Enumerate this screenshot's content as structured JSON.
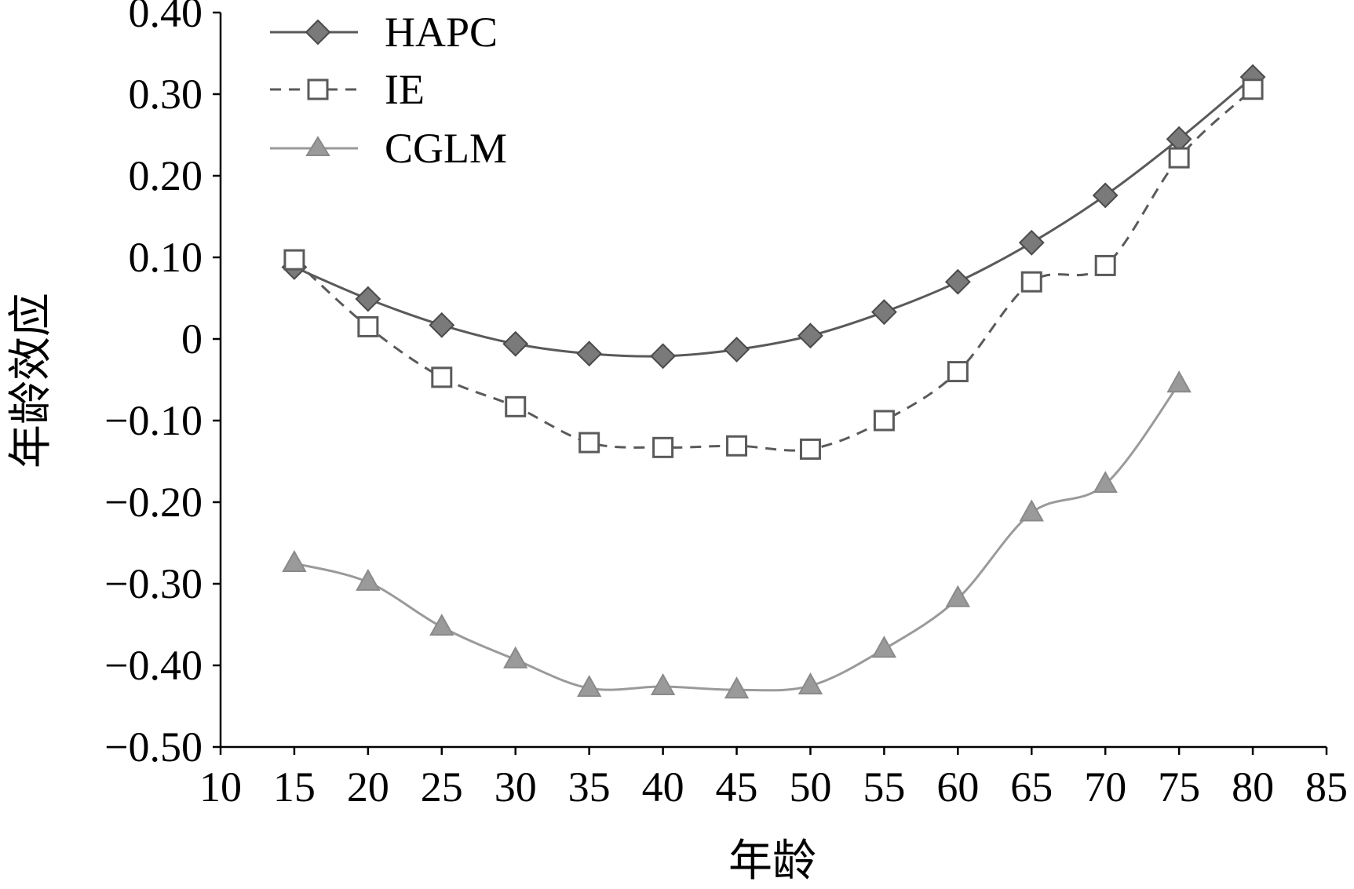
{
  "chart_data": {
    "type": "line",
    "title": "",
    "xlabel": "年龄",
    "ylabel": "年龄效应",
    "xlim": [
      10,
      85
    ],
    "ylim": [
      -0.5,
      0.4
    ],
    "x_ticks": [
      10,
      15,
      20,
      25,
      30,
      35,
      40,
      45,
      50,
      55,
      60,
      65,
      70,
      75,
      80,
      85
    ],
    "y_tick_values": [
      0.4,
      0.3,
      0.2,
      0.1,
      0,
      -0.1,
      -0.2,
      -0.3,
      -0.4,
      -0.5
    ],
    "y_tick_labels": [
      "0.40",
      "0.30",
      "0.20",
      "0.10",
      "0",
      "−0.10",
      "−0.20",
      "−0.30",
      "−0.40",
      "−0.50"
    ],
    "grid": false,
    "legend_position": "top-left",
    "series": [
      {
        "name": "HAPC",
        "marker": "diamond",
        "line": "solid",
        "color": "#5a5a5a",
        "marker_fill": "#7a7a7a",
        "x": [
          15,
          20,
          25,
          30,
          35,
          40,
          45,
          50,
          55,
          60,
          65,
          70,
          75,
          80
        ],
        "y": [
          0.088,
          0.049,
          0.017,
          -0.006,
          -0.018,
          -0.021,
          -0.013,
          0.004,
          0.033,
          0.07,
          0.118,
          0.176,
          0.245,
          0.321
        ]
      },
      {
        "name": "IE",
        "marker": "square-open",
        "line": "dashed",
        "color": "#5a5a5a",
        "marker_fill": "#ffffff",
        "x": [
          15,
          20,
          25,
          30,
          35,
          40,
          45,
          50,
          55,
          60,
          65,
          70,
          75,
          80
        ],
        "y": [
          0.097,
          0.015,
          -0.047,
          -0.083,
          -0.127,
          -0.133,
          -0.131,
          -0.135,
          -0.1,
          -0.04,
          0.07,
          0.09,
          0.222,
          0.306
        ]
      },
      {
        "name": "CGLM",
        "marker": "triangle",
        "line": "solid",
        "color": "#9a9a9a",
        "marker_fill": "#9a9a9a",
        "x": [
          15,
          20,
          25,
          30,
          35,
          40,
          45,
          50,
          55,
          60,
          65,
          70,
          75
        ],
        "y": [
          -0.275,
          -0.298,
          -0.353,
          -0.393,
          -0.428,
          -0.426,
          -0.43,
          -0.425,
          -0.38,
          -0.318,
          -0.213,
          -0.178,
          -0.055
        ]
      }
    ]
  }
}
